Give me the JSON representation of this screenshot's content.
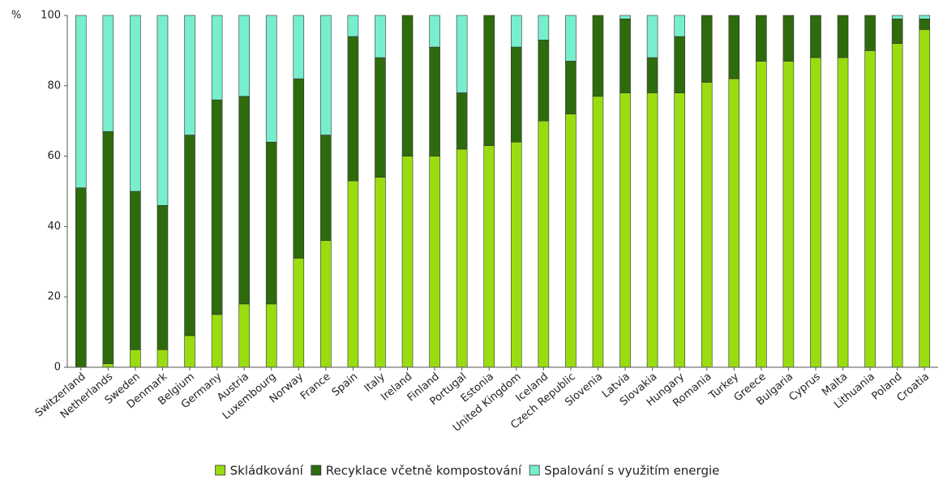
{
  "chart_data": {
    "type": "stacked_bar",
    "ylabel": "%",
    "categories": [
      "Switzerland",
      "Netherlands",
      "Sweden",
      "Denmark",
      "Belgium",
      "Germany",
      "Austria",
      "Luxembourg",
      "Norway",
      "France",
      "Spain",
      "Italy",
      "Ireland",
      "Finland",
      "Portugal",
      "Estonia",
      "United Kingdom",
      "Iceland",
      "Czech Republic",
      "Slovenia",
      "Latvia",
      "Slovakia",
      "Hungary",
      "Romania",
      "Turkey",
      "Greece",
      "Bulgaria",
      "Cyprus",
      "Malta",
      "Lithuania",
      "Poland",
      "Croatia"
    ],
    "series": [
      {
        "name": "Skládkování",
        "color": "#99dd11",
        "values": [
          0,
          1,
          5,
          5,
          9,
          15,
          18,
          18,
          31,
          36,
          53,
          54,
          60,
          60,
          62,
          63,
          64,
          70,
          72,
          77,
          78,
          78,
          78,
          81,
          82,
          87,
          87,
          88,
          88,
          90,
          92,
          96
        ]
      },
      {
        "name": "Recyklace včetně kompostování",
        "color": "#2e6b0c",
        "values": [
          51,
          66,
          45,
          41,
          57,
          61,
          59,
          46,
          51,
          30,
          41,
          34,
          40,
          31,
          16,
          37,
          27,
          23,
          15,
          23,
          21,
          10,
          16,
          19,
          18,
          13,
          13,
          12,
          12,
          10,
          7,
          3
        ]
      },
      {
        "name": "Spalování s využitím energie",
        "color": "#77eecc",
        "values": [
          49,
          33,
          50,
          54,
          34,
          24,
          23,
          36,
          18,
          34,
          6,
          12,
          0,
          9,
          22,
          0,
          9,
          7,
          13,
          0,
          1,
          12,
          6,
          0,
          0,
          0,
          0,
          0,
          0,
          0,
          1,
          1
        ]
      }
    ],
    "ylim": [
      0,
      100
    ],
    "yticks": [
      0,
      20,
      40,
      60,
      80,
      100
    ]
  }
}
